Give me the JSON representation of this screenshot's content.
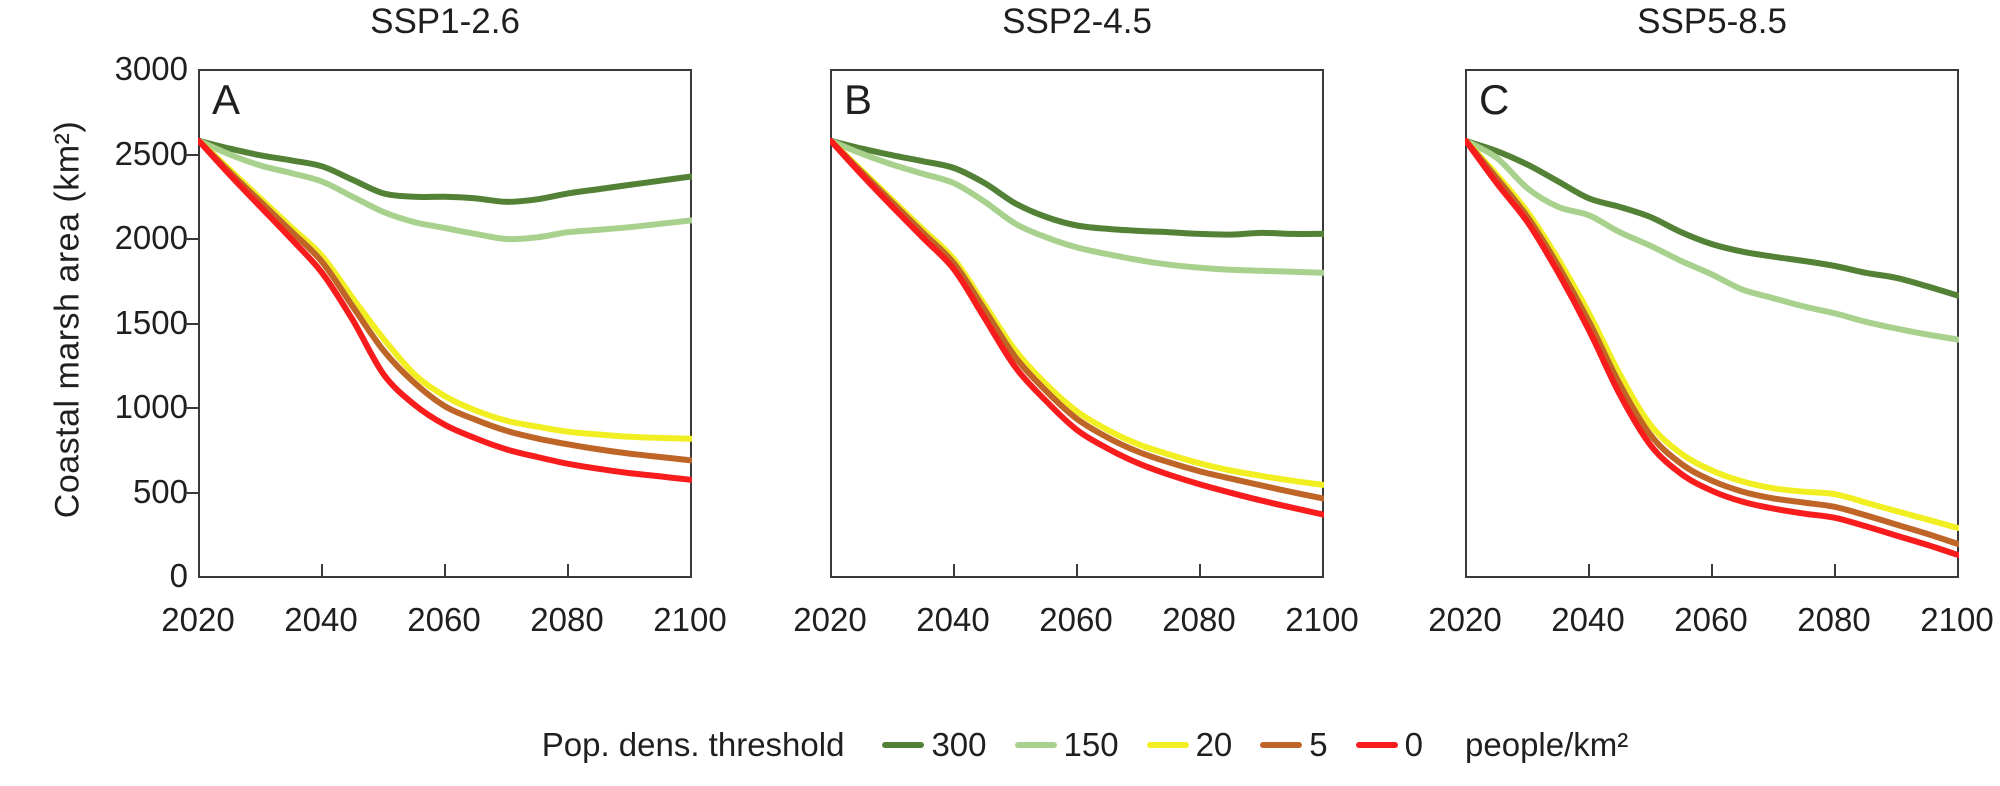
{
  "figure": {
    "y_axis_label": "Coastal marsh area (km²)"
  },
  "legend": {
    "title": "Pop. dens. threshold",
    "items": [
      {
        "label": "300"
      },
      {
        "label": "150"
      },
      {
        "label": "20"
      },
      {
        "label": "5"
      },
      {
        "label": "0"
      }
    ],
    "unit": "people/km²"
  },
  "chart_data": [
    {
      "type": "line",
      "title": "SSP1-2.6",
      "panel_label": "A",
      "xlabel": "",
      "ylabel": "Coastal marsh area (km²)",
      "xlim": [
        2020,
        2100
      ],
      "ylim": [
        0,
        3000
      ],
      "xticks": [
        2020,
        2040,
        2060,
        2080,
        2100
      ],
      "yticks": [
        0,
        500,
        1000,
        1500,
        2000,
        2500,
        3000
      ],
      "grid": false,
      "x": [
        2020,
        2025,
        2030,
        2035,
        2040,
        2045,
        2050,
        2055,
        2060,
        2065,
        2070,
        2075,
        2080,
        2085,
        2090,
        2095,
        2100
      ],
      "series": [
        {
          "name": "300",
          "color": "#538135",
          "values": [
            2580,
            2535,
            2495,
            2465,
            2430,
            2350,
            2270,
            2250,
            2250,
            2240,
            2220,
            2235,
            2270,
            2295,
            2320,
            2345,
            2370
          ]
        },
        {
          "name": "150",
          "color": "#a9d18e",
          "values": [
            2580,
            2500,
            2435,
            2390,
            2340,
            2250,
            2160,
            2100,
            2065,
            2030,
            2000,
            2010,
            2040,
            2055,
            2070,
            2090,
            2110
          ]
        },
        {
          "name": "20",
          "color": "#f1ef22",
          "values": [
            2580,
            2410,
            2240,
            2070,
            1900,
            1650,
            1410,
            1200,
            1070,
            985,
            925,
            890,
            860,
            843,
            830,
            823,
            818
          ]
        },
        {
          "name": "5",
          "color": "#bf6527",
          "values": [
            2580,
            2395,
            2220,
            2045,
            1865,
            1600,
            1340,
            1150,
            1010,
            930,
            865,
            820,
            785,
            755,
            730,
            710,
            690
          ]
        },
        {
          "name": "0",
          "color": "#f91c1c",
          "values": [
            2580,
            2380,
            2190,
            2000,
            1800,
            1520,
            1200,
            1020,
            900,
            820,
            755,
            710,
            670,
            640,
            615,
            595,
            575
          ]
        }
      ]
    },
    {
      "type": "line",
      "title": "SSP2-4.5",
      "panel_label": "B",
      "xlabel": "",
      "ylabel": "Coastal marsh area (km²)",
      "xlim": [
        2020,
        2100
      ],
      "ylim": [
        0,
        3000
      ],
      "xticks": [
        2020,
        2040,
        2060,
        2080,
        2100
      ],
      "yticks": [
        0,
        500,
        1000,
        1500,
        2000,
        2500,
        3000
      ],
      "grid": false,
      "x": [
        2020,
        2025,
        2030,
        2035,
        2040,
        2045,
        2050,
        2055,
        2060,
        2065,
        2070,
        2075,
        2080,
        2085,
        2090,
        2095,
        2100
      ],
      "series": [
        {
          "name": "300",
          "color": "#538135",
          "values": [
            2580,
            2535,
            2495,
            2460,
            2420,
            2330,
            2210,
            2130,
            2080,
            2060,
            2048,
            2040,
            2030,
            2026,
            2036,
            2030,
            2030
          ]
        },
        {
          "name": "150",
          "color": "#a9d18e",
          "values": [
            2580,
            2505,
            2440,
            2385,
            2330,
            2220,
            2090,
            2010,
            1950,
            1910,
            1875,
            1848,
            1830,
            1818,
            1812,
            1806,
            1800
          ]
        },
        {
          "name": "20",
          "color": "#f1ef22",
          "values": [
            2580,
            2405,
            2230,
            2055,
            1880,
            1610,
            1340,
            1140,
            980,
            870,
            785,
            725,
            672,
            630,
            598,
            570,
            545
          ]
        },
        {
          "name": "5",
          "color": "#bf6527",
          "values": [
            2580,
            2395,
            2215,
            2035,
            1855,
            1580,
            1300,
            1100,
            935,
            825,
            740,
            678,
            625,
            582,
            542,
            502,
            465
          ]
        },
        {
          "name": "0",
          "color": "#f91c1c",
          "values": [
            2580,
            2380,
            2190,
            2005,
            1820,
            1530,
            1240,
            1040,
            870,
            760,
            672,
            605,
            548,
            498,
            452,
            410,
            370
          ]
        }
      ]
    },
    {
      "type": "line",
      "title": "SSP5-8.5",
      "panel_label": "C",
      "xlabel": "",
      "ylabel": "Coastal marsh area (km²)",
      "xlim": [
        2020,
        2100
      ],
      "ylim": [
        0,
        3000
      ],
      "xticks": [
        2020,
        2040,
        2060,
        2080,
        2100
      ],
      "yticks": [
        0,
        500,
        1000,
        1500,
        2000,
        2500,
        3000
      ],
      "grid": false,
      "x": [
        2020,
        2025,
        2030,
        2035,
        2040,
        2045,
        2050,
        2055,
        2060,
        2065,
        2070,
        2075,
        2080,
        2085,
        2090,
        2095,
        2100
      ],
      "series": [
        {
          "name": "300",
          "color": "#538135",
          "values": [
            2580,
            2520,
            2440,
            2340,
            2240,
            2190,
            2130,
            2040,
            1970,
            1925,
            1895,
            1870,
            1840,
            1800,
            1770,
            1720,
            1665
          ]
        },
        {
          "name": "150",
          "color": "#a9d18e",
          "values": [
            2580,
            2480,
            2300,
            2190,
            2140,
            2040,
            1960,
            1870,
            1790,
            1700,
            1650,
            1600,
            1560,
            1510,
            1470,
            1435,
            1405
          ]
        },
        {
          "name": "20",
          "color": "#f1ef22",
          "values": [
            2580,
            2380,
            2160,
            1880,
            1560,
            1200,
            900,
            730,
            630,
            565,
            525,
            505,
            490,
            440,
            390,
            340,
            290
          ]
        },
        {
          "name": "5",
          "color": "#bf6527",
          "values": [
            2580,
            2360,
            2130,
            1840,
            1510,
            1140,
            840,
            670,
            570,
            505,
            465,
            440,
            415,
            365,
            310,
            255,
            195
          ]
        },
        {
          "name": "0",
          "color": "#f91c1c",
          "values": [
            2580,
            2330,
            2100,
            1800,
            1460,
            1080,
            780,
            610,
            510,
            445,
            405,
            375,
            350,
            300,
            245,
            190,
            130
          ]
        }
      ]
    }
  ]
}
